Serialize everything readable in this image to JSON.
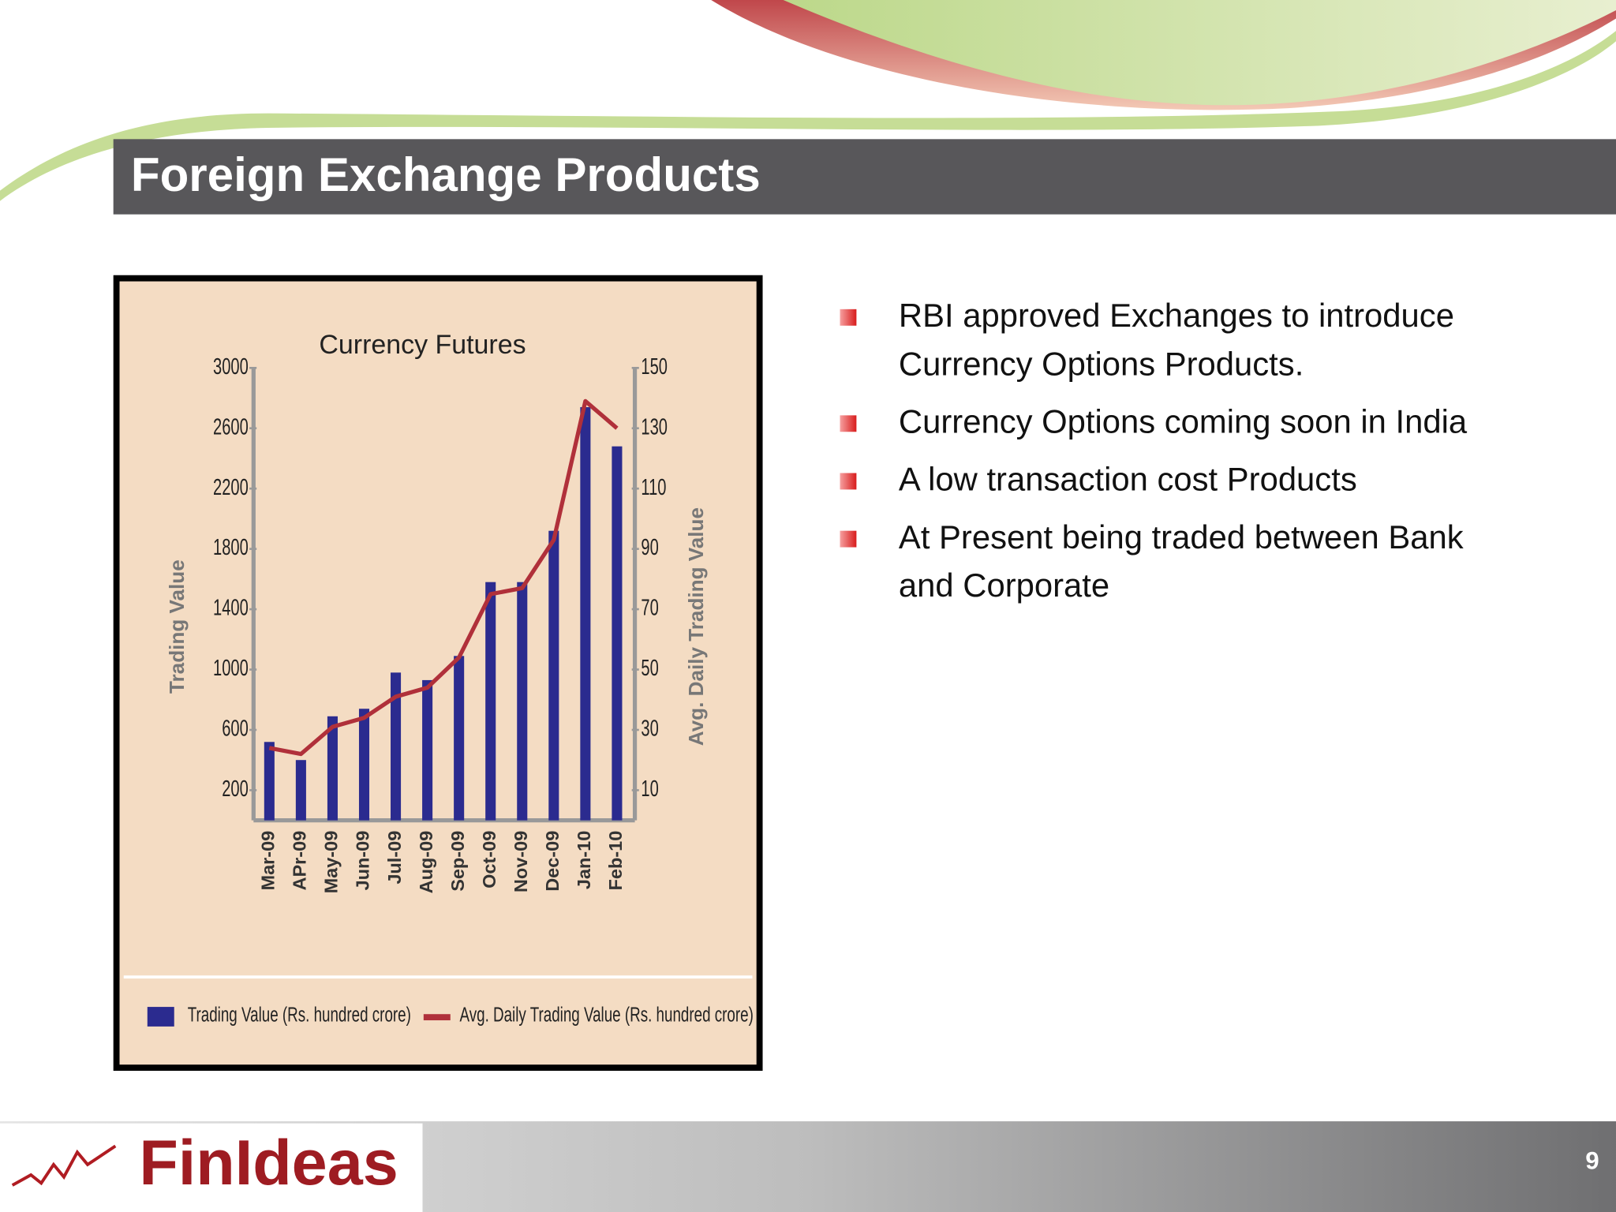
{
  "title": "Foreign Exchange Products",
  "bullets": [
    "RBI approved Exchanges to introduce Currency Options Products.",
    "Currency Options coming soon in India",
    "A low transaction cost Products",
    "At Present being traded between Bank and Corporate"
  ],
  "logo": "FinIdeas",
  "page_number": "9",
  "chart_data": {
    "type": "bar",
    "title": "Currency Futures",
    "y_label": "Trading Value",
    "y2_label": "Avg. Daily Trading Value",
    "categories": [
      "Mar-09",
      "APr-09",
      "May-09",
      "Jun-09",
      "Jul-09",
      "Aug-09",
      "Sep-09",
      "Oct-09",
      "Nov-09",
      "Dec-09",
      "Jan-10",
      "Feb-10"
    ],
    "series": [
      {
        "name": "Trading Value (Rs. hundred crore)",
        "type": "bar",
        "color": "#2b2b8f",
        "values": [
          520,
          400,
          690,
          740,
          980,
          930,
          1090,
          1580,
          1580,
          1920,
          2740,
          2480
        ]
      },
      {
        "name": "Avg. Daily Trading Value (Rs. hundred crore)",
        "type": "line",
        "axis": "y2",
        "color": "#b0303a",
        "values": [
          24,
          22,
          31,
          34,
          41,
          44,
          54,
          75,
          77,
          93,
          139,
          130
        ]
      }
    ],
    "ylim": [
      0,
      3000
    ],
    "yticks": [
      200,
      600,
      1000,
      1400,
      1800,
      2200,
      2600,
      3000
    ],
    "y2lim": [
      0,
      150
    ],
    "y2ticks": [
      10,
      30,
      50,
      70,
      90,
      110,
      130,
      150
    ],
    "grid": false
  }
}
